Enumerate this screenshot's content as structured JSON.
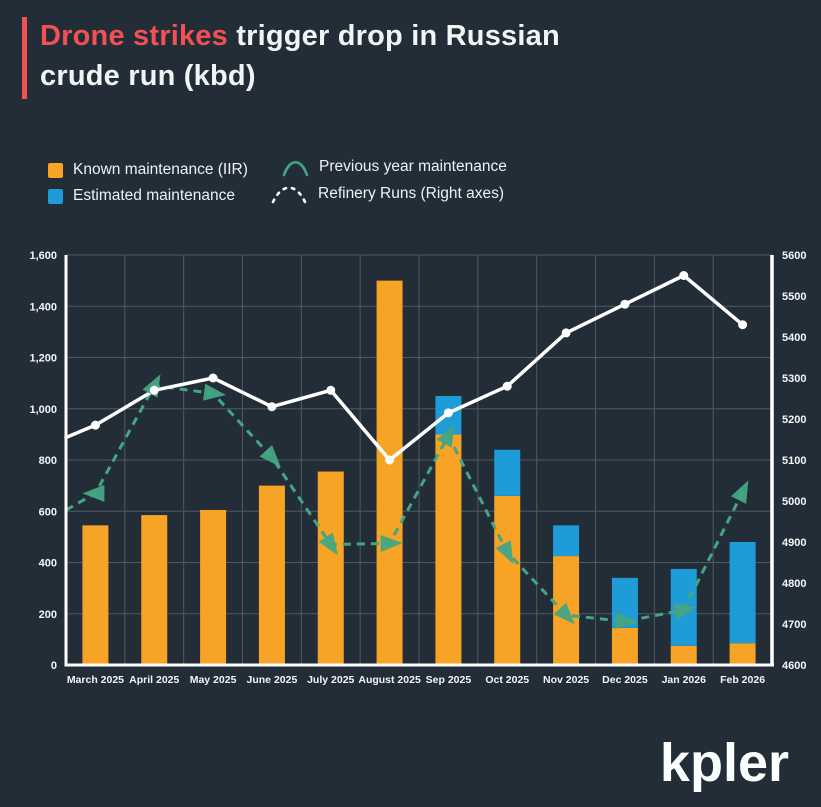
{
  "header": {
    "title_accent": "Drone strikes",
    "title_rest": "trigger drop in Russian",
    "title_line2": "crude run (kbd)"
  },
  "legend": {
    "items": [
      {
        "id": "known",
        "label": "Known maintenance (IIR)",
        "swatch": "square",
        "color": "#F6A326"
      },
      {
        "id": "estimated",
        "label": "Estimated maintenance",
        "swatch": "square",
        "color": "#1E9CD8"
      },
      {
        "id": "prev_year",
        "label": "Previous year maintenance",
        "swatch": "curve",
        "color": "#45A583"
      },
      {
        "id": "refinery",
        "label": "Refinery Runs (Right axes)",
        "swatch": "dotted-curve",
        "color": "#FFFFFF"
      }
    ]
  },
  "chart_data": {
    "type": "bar",
    "subtype": "stacked-bars-with-lines",
    "title": "Drone strikes trigger drop in Russian crude run (kbd)",
    "categories": [
      "March 2025",
      "April 2025",
      "May 2025",
      "June 2025",
      "July 2025",
      "August 2025",
      "Sep 2025",
      "Oct 2025",
      "Nov 2025",
      "Dec 2025",
      "Jan 2026",
      "Feb 2026"
    ],
    "series": [
      {
        "name": "Known maintenance (IIR)",
        "type": "bar",
        "stack": "maintenance",
        "axis": "left",
        "color": "#F6A326",
        "values": [
          545,
          585,
          605,
          700,
          755,
          1500,
          900,
          660,
          425,
          145,
          75,
          85
        ]
      },
      {
        "name": "Estimated maintenance",
        "type": "bar",
        "stack": "maintenance",
        "axis": "left",
        "color": "#1E9CD8",
        "values": [
          0,
          0,
          0,
          0,
          0,
          0,
          150,
          180,
          120,
          195,
          300,
          395
        ]
      },
      {
        "name": "Previous year maintenance",
        "type": "line",
        "style": "dashed-triangle-markers",
        "axis": "left",
        "color": "#45A583",
        "edge_start": 605,
        "values": [
          670,
          1090,
          1060,
          810,
          470,
          475,
          895,
          440,
          195,
          170,
          215,
          675
        ]
      },
      {
        "name": "Refinery Runs (Right axes)",
        "type": "line",
        "style": "solid-dot-markers",
        "axis": "right",
        "color": "#FFFFFF",
        "edge_start": 5155,
        "values": [
          5185,
          5270,
          5300,
          5230,
          5270,
          5100,
          5215,
          5280,
          5410,
          5480,
          5550,
          5430
        ]
      }
    ],
    "left_axis": {
      "min": 0,
      "max": 1600,
      "step": 200,
      "tick_labels": [
        "0",
        "200",
        "400",
        "600",
        "800",
        "1,000",
        "1,200",
        "1,400",
        "1,600"
      ]
    },
    "right_axis": {
      "min": 4600,
      "max": 5600,
      "step": 100,
      "tick_labels": [
        "4600",
        "4700",
        "4800",
        "4900",
        "5000",
        "5100",
        "5200",
        "5300",
        "5400",
        "5500",
        "5600"
      ]
    },
    "grid": true,
    "legend_position": "top-left"
  },
  "footer": {
    "logo": "kpler"
  },
  "colors": {
    "bg": "#222D38",
    "red": "#F15152",
    "orange": "#F6A326",
    "blue": "#1E9CD8",
    "green": "#45A583",
    "white": "#FFFFFF",
    "grid": "#4E5963",
    "text": "#F3F6F7"
  }
}
